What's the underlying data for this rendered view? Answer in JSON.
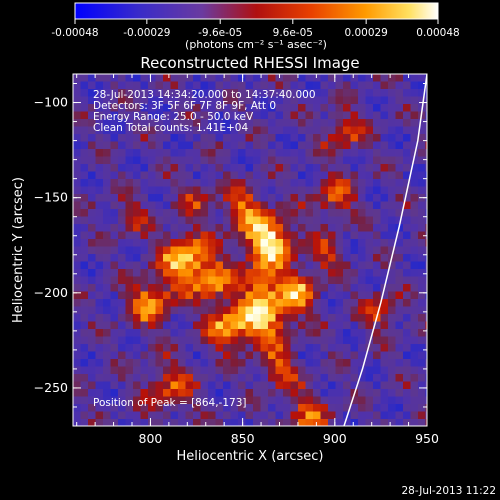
{
  "colorbar": {
    "ticks": [
      "-0.00048",
      "-0.00029",
      "-9.6e-05",
      "9.6e-05",
      "0.00029",
      "0.00048"
    ],
    "unit_label": "(photons cm⁻² s⁻¹ asec⁻²)",
    "range": [
      -0.00048,
      0.00048
    ]
  },
  "chart_data": {
    "type": "heatmap",
    "title": "Reconstructed RHESSI Image",
    "xlabel": "Heliocentric X (arcsec)",
    "ylabel": "Heliocentric Y (arcsec)",
    "xlim": [
      758,
      950
    ],
    "ylim": [
      -270,
      -85
    ],
    "x_ticks": [
      800,
      850,
      900,
      950
    ],
    "y_ticks": [
      -100,
      -150,
      -200,
      -250
    ],
    "annotations": {
      "time_range": "28-Jul-2013 14:34:20.000 to 14:37:40.000",
      "detectors": "Detectors: 3F 5F 6F 7F 8F 9F, Att 0",
      "energy": "Energy Range: 25.0 - 50.0 keV",
      "method": "Clean     Total counts: 1.41E+04",
      "peak": "Position of Peak = [864,-173]"
    },
    "peak": [
      864,
      -173
    ],
    "limb_curve": [
      [
        950,
        -85
      ],
      [
        945,
        -120
      ],
      [
        935,
        -165
      ],
      [
        925,
        -205
      ],
      [
        915,
        -240
      ],
      [
        905,
        -270
      ]
    ]
  },
  "timestamp": "28-Jul-2013 11:22"
}
